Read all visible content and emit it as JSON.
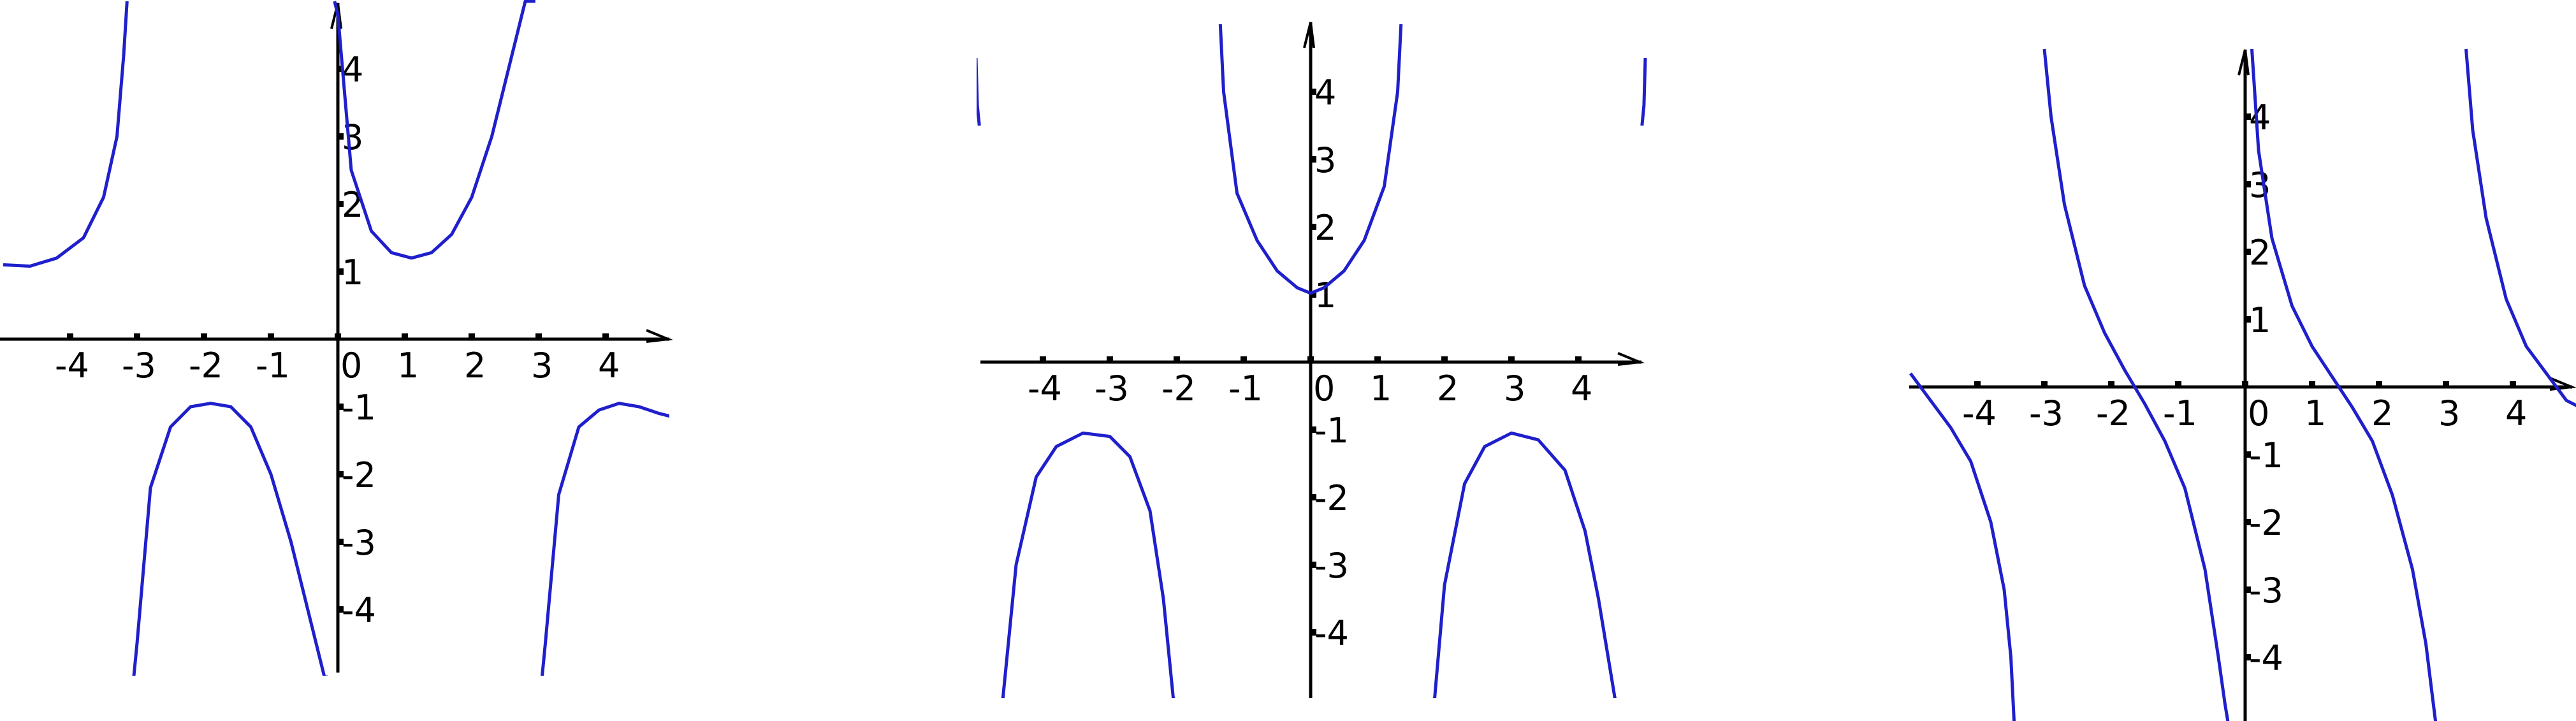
{
  "chart_data": [
    {
      "type": "line",
      "title": "",
      "xlabel": "",
      "ylabel": "",
      "xlim": [
        -5,
        5
      ],
      "ylim": [
        -5,
        5
      ],
      "x_ticks": [
        "-4",
        "-3",
        "-2",
        "-1",
        "0",
        "1",
        "2",
        "3",
        "4"
      ],
      "y_ticks": [
        "4",
        "3",
        "2",
        "1",
        "-1",
        "-2",
        "-3",
        "-4"
      ],
      "grid": false,
      "color": "#1f1fcc",
      "series": [
        {
          "x": [
            -5.0,
            -4.6,
            -4.2,
            -3.8,
            -3.5,
            -3.3,
            -3.2,
            -3.15,
            null,
            -3.05,
            -3.0,
            -2.8,
            -2.5,
            -2.2,
            -1.9,
            -1.6,
            -1.3,
            -1.0,
            -0.7,
            -0.4,
            -0.2,
            -0.15,
            null,
            -0.05,
            0.0,
            0.2,
            0.5,
            0.8,
            1.1,
            1.4,
            1.7,
            2.0,
            2.3,
            2.6,
            2.8,
            2.9,
            2.95,
            null,
            3.05,
            3.1,
            3.3,
            3.6,
            3.9,
            4.2,
            4.5,
            4.8,
            5.0
          ],
          "y": [
            1.1,
            1.08,
            1.2,
            1.5,
            2.1,
            3.0,
            4.2,
            5.0,
            null,
            -5.0,
            -4.5,
            -2.2,
            -1.3,
            -1.0,
            -0.95,
            -1.0,
            -1.3,
            -2.0,
            -3.0,
            -4.2,
            -5.0,
            -5.0,
            null,
            5.0,
            4.8,
            2.5,
            1.6,
            1.28,
            1.2,
            1.28,
            1.55,
            2.1,
            3.0,
            4.2,
            5.0,
            5.0,
            5.0,
            null,
            -5.0,
            -4.5,
            -2.3,
            -1.3,
            -1.05,
            -0.95,
            -1.0,
            -1.1,
            -1.15
          ]
        }
      ]
    },
    {
      "type": "line",
      "title": "",
      "xlabel": "",
      "ylabel": "",
      "xlim": [
        -5,
        5
      ],
      "ylim": [
        -5,
        5
      ],
      "x_ticks": [
        "-4",
        "-3",
        "-2",
        "-1",
        "0",
        "1",
        "2",
        "3",
        "4"
      ],
      "y_ticks": [
        "4",
        "3",
        "2",
        "1",
        "-1",
        "-2",
        "-3",
        "-4"
      ],
      "grid": false,
      "color": "#1f1fcc",
      "series": [
        {
          "x": [
            -5.0,
            -4.98,
            -4.95,
            null,
            -4.6,
            -4.4,
            -4.1,
            -3.8,
            -3.4,
            -3.0,
            -2.7,
            -2.4,
            -2.2,
            -2.05,
            null,
            -1.35,
            -1.3,
            -1.1,
            -0.8,
            -0.5,
            -0.2,
            0.0,
            0.2,
            0.5,
            0.8,
            1.1,
            1.3,
            1.35,
            null,
            1.85,
            2.0,
            2.3,
            2.6,
            3.0,
            3.4,
            3.8,
            4.1,
            4.3,
            4.55,
            null,
            4.95,
            4.98,
            5.0
          ],
          "y": [
            4.5,
            3.8,
            3.5,
            null,
            -5.0,
            -3.0,
            -1.7,
            -1.25,
            -1.05,
            -1.1,
            -1.4,
            -2.2,
            -3.5,
            -5.0,
            null,
            5.0,
            4.0,
            2.5,
            1.8,
            1.35,
            1.1,
            1.02,
            1.1,
            1.35,
            1.8,
            2.6,
            4.0,
            5.0,
            null,
            -5.0,
            -3.3,
            -1.8,
            -1.25,
            -1.05,
            -1.15,
            -1.6,
            -2.5,
            -3.5,
            -5.0,
            null,
            3.5,
            3.8,
            4.5
          ]
        }
      ]
    },
    {
      "type": "line",
      "title": "",
      "xlabel": "",
      "ylabel": "",
      "xlim": [
        -5,
        5
      ],
      "ylim": [
        -5,
        5
      ],
      "x_ticks": [
        "-4",
        "-3",
        "-2",
        "-1",
        "0",
        "1",
        "2",
        "3",
        "4"
      ],
      "y_ticks": [
        "4",
        "3",
        "2",
        "1",
        "-1",
        "-2",
        "-3",
        "-4"
      ],
      "grid": false,
      "color": "#1f1fcc",
      "series": [
        {
          "x": [
            -5.0,
            -4.7,
            -4.4,
            -4.1,
            -3.8,
            -3.6,
            -3.5,
            -3.45,
            null,
            -3.0,
            -2.9,
            -2.7,
            -2.4,
            -2.1,
            -1.8,
            -1.5,
            -1.2,
            -0.9,
            -0.6,
            -0.4,
            -0.3,
            -0.25,
            null,
            0.1,
            0.2,
            0.4,
            0.7,
            1.0,
            1.3,
            1.6,
            1.9,
            2.2,
            2.5,
            2.7,
            2.8,
            2.85,
            null,
            3.3,
            3.4,
            3.6,
            3.9,
            4.2,
            4.5,
            4.8,
            5.0
          ],
          "y": [
            0.2,
            -0.2,
            -0.6,
            -1.1,
            -2.0,
            -3.0,
            -4.0,
            -5.0,
            null,
            5.0,
            4.0,
            2.7,
            1.5,
            0.8,
            0.25,
            -0.25,
            -0.8,
            -1.5,
            -2.7,
            -4.0,
            -4.7,
            -5.0,
            null,
            5.0,
            3.5,
            2.2,
            1.2,
            0.6,
            0.15,
            -0.3,
            -0.8,
            -1.6,
            -2.7,
            -3.8,
            -4.6,
            -5.0,
            null,
            5.0,
            3.8,
            2.5,
            1.3,
            0.6,
            0.2,
            -0.2,
            -0.3
          ]
        }
      ]
    }
  ]
}
